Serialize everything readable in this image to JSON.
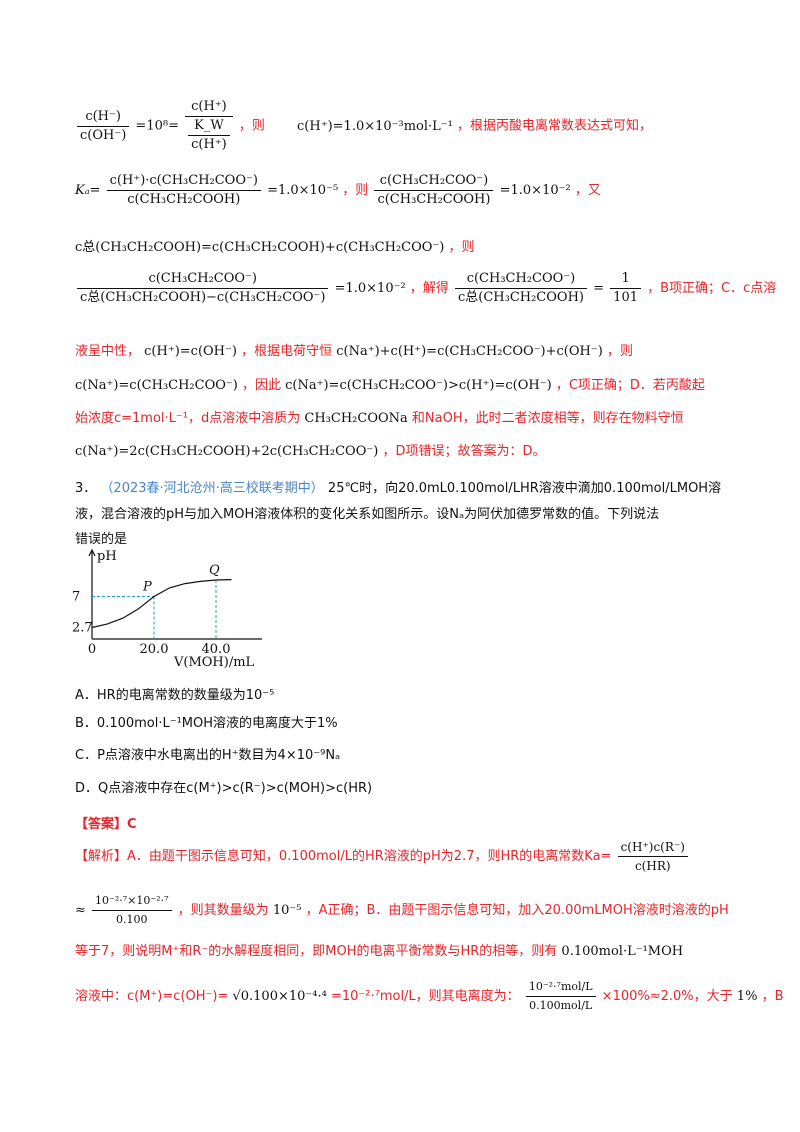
{
  "top": {
    "l1_frac1_num": "c(H⁻)",
    "l1_frac1_den": "c(OH⁻)",
    "l1_eq": "=10⁸=",
    "l1_frac2_num": "c(H⁺)",
    "l1_frac2_den_num": "K_W",
    "l1_frac2_den_den": "c(H⁺)",
    "l1_text1": "，则",
    "l1_ch": "c(H⁺)=1.0×10⁻³mol·L⁻¹",
    "l1_text2": "，根据丙酸电离常数表达式可知，",
    "l2_ka": "Kₐ=",
    "l2_num": "c(H⁺)·c(CH₃CH₂COO⁻)",
    "l2_den": "c(CH₃CH₂COOH)",
    "l2_eq": "=1.0×10⁻⁵",
    "l2_then": "，则",
    "l2_num2": "c(CH₃CH₂COO⁻)",
    "l2_den2": "c(CH₃CH₂COOH)",
    "l2_eq2": "=1.0×10⁻²",
    "l2_again": "，又",
    "l3_expr": "c总(CH₃CH₂COOH)=c(CH₃CH₂COOH)+c(CH₃CH₂COO⁻)",
    "l3_then": "，则",
    "l4_num": "c(CH₃CH₂COO⁻)",
    "l4_den": "c总(CH₃CH₂COOH)−c(CH₃CH₂COO⁻)",
    "l4_eq": "=1.0×10⁻²",
    "l4_solve": "，解得",
    "l4_num2": "c(CH₃CH₂COO⁻)",
    "l4_den2": "c总(CH₃CH₂COOH)",
    "l4_eq2": "=",
    "l4_r_num": "1",
    "l4_r_den": "101",
    "l4_tail": "，B项正确；C．c点溶",
    "l5_text1": "液呈中性，",
    "l5_expr1": "c(H⁺)=c(OH⁻)",
    "l5_text2": "，根据电荷守恒",
    "l5_expr2": "c(Na⁺)+c(H⁺)=c(CH₃CH₂COO⁻)+c(OH⁻)",
    "l5_text3": "，则",
    "l6_expr1": "c(Na⁺)=c(CH₃CH₂COO⁻)",
    "l6_text1": "，因此",
    "l6_expr2": "c(Na⁺)=c(CH₃CH₂COO⁻)>c(H⁺)=c(OH⁻)",
    "l6_text2": "，C项正确；D．若丙酸起",
    "l7_text1": "始浓度c=1mol·L⁻¹，d点溶液中溶质为",
    "l7_expr": "CH₃CH₂COONa",
    "l7_text2": "和NaOH，此时二者浓度相等，则存在物料守恒",
    "l8_expr": "c(Na⁺)=2c(CH₃CH₂COOH)+2c(CH₃CH₂COO⁻)",
    "l8_text": "，D项错误；故答案为：D。"
  },
  "q3": {
    "num": "3．",
    "source": "（2023春·河北沧州·高三校联考期中）",
    "stem1": "25℃时，向20.0mL0.100mol/LHR溶液中滴加0.100mol/LMOH溶",
    "stem2": "液，混合溶液的pH与加入MOH溶液体积的变化关系如图所示。设Nₐ为阿伏加德罗常数的值。下列说法",
    "stem3": "错误的是"
  },
  "chart_data": {
    "type": "line",
    "title": "",
    "ylabel": "pH",
    "xlabel": "V(MOH)/mL",
    "x_ticks": [
      "0",
      "20.0",
      "40.0"
    ],
    "y_ticks": [
      "2.7",
      "7"
    ],
    "points": [
      {
        "label": "P",
        "x": 20.0,
        "y": 7
      },
      {
        "label": "Q",
        "x": 40.0,
        "y": 9.3
      }
    ],
    "series": [
      {
        "x": [
          0,
          5,
          10,
          15,
          20,
          25,
          30,
          35,
          40,
          45
        ],
        "y": [
          2.7,
          3.2,
          4.0,
          5.3,
          7,
          8.2,
          8.8,
          9.1,
          9.3,
          9.35
        ]
      }
    ],
    "guide_color": "#1aa0d8"
  },
  "options": {
    "A": "A．HR的电离常数的数量级为10⁻⁵",
    "B": "B．0.100mol·L⁻¹MOH溶液的电离度大于1%",
    "C": "C．P点溶液中水电离出的H⁺数目为4×10⁻⁹Nₐ",
    "D": "D．Q点溶液中存在c(M⁺)>c(R⁻)>c(MOH)>c(HR)"
  },
  "answer": {
    "label": "【答案】C"
  },
  "analysis": {
    "l1_a": "【解析】A．由题干图示信息可知，0.100mol/L的HR溶液的pH为2.7，则HR的电离常数Ka=",
    "l1_frac_num": "c(H⁺)c(R⁻)",
    "l1_frac_den": "c(HR)",
    "l2_approx": "≈",
    "l2_frac_num": "10⁻²·⁷×10⁻²·⁷",
    "l2_frac_den": "0.100",
    "l2_text": "，则其数量级为",
    "l2_pow": "10⁻⁵",
    "l2_text2": "，A正确；B．由题干图示信息可知，加入20.00mLMOH溶液时溶液的pH",
    "l3_text": "等于7，则说明M⁺和R⁻的水解程度相同，即MOH的电离平衡常数与HR的相等，则有",
    "l3_expr": "0.100mol·L⁻¹MOH",
    "l4_text1": "溶液中：c(M⁺)=c(OH⁻)=",
    "l4_sqrt": "√0.100×10⁻⁴·⁴",
    "l4_text2": "=10⁻²·⁷mol/L，则其电离度为：",
    "l4_frac_num": "10⁻²·⁷mol/L",
    "l4_frac_den": "0.100mol/L",
    "l4_text3": "×100%≈2.0%，大于",
    "l4_pct": "1%",
    "l4_text4": "，B"
  }
}
